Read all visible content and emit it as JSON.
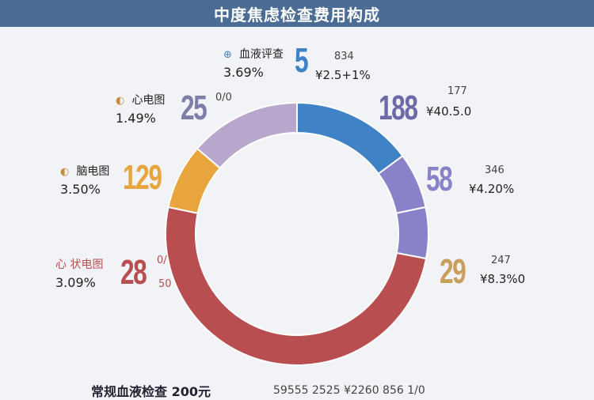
{
  "title": "中度焦虑检查费用构成",
  "colors": {
    "title_bg": "#4a6c95",
    "blood": "#3f82c6",
    "purple": "#8a82c9",
    "red": "#b94e50",
    "orange": "#e8a53d",
    "lilac": "#b8a6cc"
  },
  "labels": {
    "blood": {
      "icon": "⊕",
      "name": "血液评查",
      "pct": "3.69%",
      "big": "5",
      "meta1": "834",
      "meta2": "¥2.5+1%"
    },
    "ecg": {
      "icon": "◐",
      "name": "心电图",
      "pct": "1.49%",
      "big": "25",
      "meta1": "0/0"
    },
    "eeg": {
      "icon": "◐",
      "name": "脑电图",
      "pct": "3.50%",
      "big": "129"
    },
    "thyroid": {
      "icon": "",
      "name": "心 状电图",
      "pct": "3.09%",
      "big": "28",
      "meta1": "0/",
      "meta2": "50"
    },
    "r1": {
      "big": "188",
      "meta1": "177",
      "meta2": "¥40.5.0"
    },
    "r2": {
      "big": "58",
      "meta1": "346",
      "meta2": "¥4.20%"
    },
    "r3": {
      "big": "29",
      "meta1": "247",
      "meta2": "¥8.3%0"
    }
  },
  "footer": {
    "text": "常规血液检查 200元",
    "nums": "59555 2525   ¥2260 856 1/0"
  },
  "chart_data": {
    "type": "pie",
    "categories": [
      "血液评查",
      "",
      "",
      "",
      "",
      "脑电图",
      "心电图"
    ],
    "values": [
      13,
      6,
      5.5,
      44,
      0,
      7,
      12
    ],
    "donut": true
  }
}
